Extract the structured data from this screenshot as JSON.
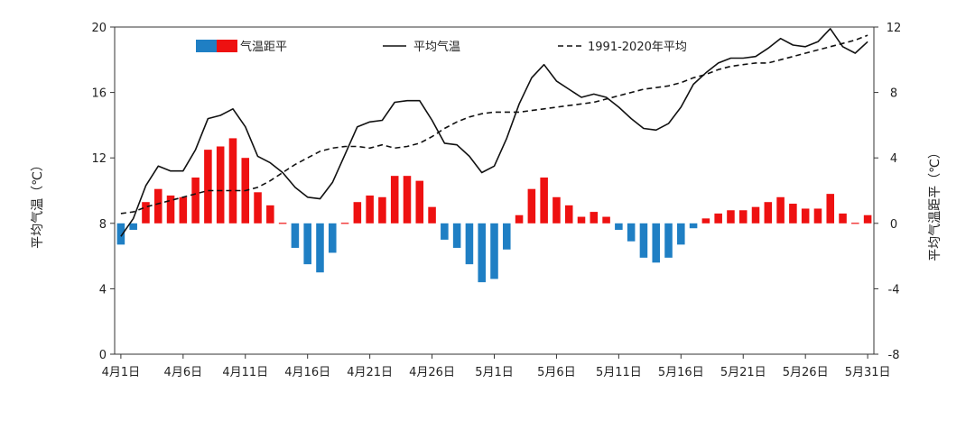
{
  "chart_data": {
    "type": "bar+line",
    "categories": [
      "4月1日",
      "4月2日",
      "4月3日",
      "4月4日",
      "4月5日",
      "4月6日",
      "4月7日",
      "4月8日",
      "4月9日",
      "4月10日",
      "4月11日",
      "4月12日",
      "4月13日",
      "4月14日",
      "4月15日",
      "4月16日",
      "4月17日",
      "4月18日",
      "4月19日",
      "4月20日",
      "4月21日",
      "4月22日",
      "4月23日",
      "4月24日",
      "4月25日",
      "4月26日",
      "4月27日",
      "4月28日",
      "4月29日",
      "4月30日",
      "5月1日",
      "5月2日",
      "5月3日",
      "5月4日",
      "5月5日",
      "5月6日",
      "5月7日",
      "5月8日",
      "5月9日",
      "5月10日",
      "5月11日",
      "5月12日",
      "5月13日",
      "5月14日",
      "5月15日",
      "5月16日",
      "5月17日",
      "5月18日",
      "5月19日",
      "5月20日",
      "5月21日",
      "5月22日",
      "5月23日",
      "5月24日",
      "5月25日",
      "5月26日",
      "5月27日",
      "5月28日",
      "5月29日",
      "5月30日",
      "5月31日"
    ],
    "x_tick_labels": [
      "4月1日",
      "4月6日",
      "4月11日",
      "4月16日",
      "4月21日",
      "4月26日",
      "5月1日",
      "5月6日",
      "5月11日",
      "5月16日",
      "5月21日",
      "5月26日",
      "5月31日"
    ],
    "left_axis": {
      "label": "平均气温（℃）",
      "ylim": [
        0,
        20
      ],
      "ticks": [
        "0",
        "4",
        "8",
        "12",
        "16",
        "20"
      ]
    },
    "right_axis": {
      "label": "平均气温距平（℃）",
      "ylim": [
        -8,
        12
      ],
      "ticks": [
        "-8",
        "-4",
        "0",
        "4",
        "8",
        "12"
      ]
    },
    "series": [
      {
        "name": "气温距平",
        "kind": "bar",
        "axis": "right",
        "positive_color": "#ee1111",
        "negative_color": "#1f7fc4",
        "values": [
          -1.3,
          -0.4,
          1.3,
          2.1,
          1.7,
          1.6,
          2.8,
          4.5,
          4.7,
          5.2,
          4.0,
          1.9,
          1.1,
          0.0,
          -1.5,
          -2.5,
          -3.0,
          -1.8,
          0.0,
          1.3,
          1.7,
          1.6,
          2.9,
          2.9,
          2.6,
          1.0,
          -1.0,
          -1.5,
          -2.5,
          -3.6,
          -3.4,
          -1.6,
          0.5,
          2.1,
          2.8,
          1.6,
          1.1,
          0.4,
          0.7,
          0.4,
          -0.4,
          -1.1,
          -2.1,
          -2.4,
          -2.1,
          -1.3,
          -0.3,
          0.3,
          0.6,
          0.8,
          0.8,
          1.0,
          1.3,
          1.6,
          1.2,
          0.9,
          0.9,
          1.8,
          0.6,
          0.0,
          0.5
        ]
      },
      {
        "name": "平均气温",
        "kind": "line",
        "axis": "left",
        "style": "solid",
        "color": "#111111",
        "values": [
          7.2,
          8.3,
          10.3,
          11.5,
          11.2,
          11.2,
          12.5,
          14.4,
          14.6,
          15.0,
          13.9,
          12.1,
          11.7,
          11.1,
          10.2,
          9.6,
          9.5,
          10.5,
          12.2,
          13.9,
          14.2,
          14.3,
          15.4,
          15.5,
          15.5,
          14.3,
          12.9,
          12.8,
          12.1,
          11.1,
          11.5,
          13.2,
          15.3,
          16.9,
          17.7,
          16.7,
          16.2,
          15.7,
          15.9,
          15.7,
          15.1,
          14.4,
          13.8,
          13.7,
          14.1,
          15.1,
          16.5,
          17.2,
          17.8,
          18.1,
          18.1,
          18.2,
          18.7,
          19.3,
          18.9,
          18.8,
          19.1,
          19.9,
          18.8,
          18.4,
          19.1
        ]
      },
      {
        "name": "1991-2020年平均",
        "kind": "line",
        "axis": "left",
        "style": "dashed",
        "color": "#111111",
        "values": [
          8.6,
          8.7,
          9.0,
          9.2,
          9.4,
          9.6,
          9.8,
          10.0,
          10.0,
          10.0,
          10.0,
          10.2,
          10.6,
          11.1,
          11.6,
          12.0,
          12.4,
          12.6,
          12.7,
          12.7,
          12.6,
          12.8,
          12.6,
          12.7,
          12.9,
          13.3,
          13.8,
          14.2,
          14.5,
          14.7,
          14.8,
          14.8,
          14.8,
          14.9,
          15.0,
          15.1,
          15.2,
          15.3,
          15.4,
          15.6,
          15.8,
          16.0,
          16.2,
          16.3,
          16.4,
          16.6,
          16.9,
          17.1,
          17.4,
          17.6,
          17.7,
          17.8,
          17.8,
          18.0,
          18.2,
          18.4,
          18.6,
          18.8,
          19.0,
          19.2,
          19.5
        ]
      }
    ],
    "legend": {
      "placement": "top",
      "items": [
        "气温距平",
        "平均气温",
        "1991-2020年平均"
      ]
    },
    "grid": false
  }
}
